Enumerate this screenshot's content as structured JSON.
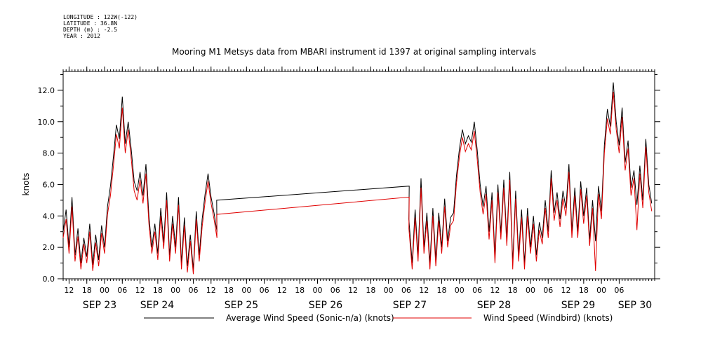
{
  "header": {
    "longitude": "LONGITUDE : 122W(-122)",
    "latitude": "LATITUDE : 36.8N",
    "depth": "DEPTH (m) : -2.5",
    "year": "YEAR : 2012"
  },
  "chart_data": {
    "type": "line",
    "title": "Mooring M1 Metsys data from MBARI instrument id 1397 at original sampling intervals",
    "ylabel": "knots",
    "xlabel": "",
    "ylim": [
      0,
      13.2
    ],
    "xlim_hours": [
      0,
      200
    ],
    "y_ticks": [
      "0.0",
      "2.0",
      "4.0",
      "6.0",
      "8.0",
      "10.0",
      "12.0"
    ],
    "x_hour_ticks": [
      "12",
      "18",
      "00",
      "06",
      "12",
      "18",
      "00",
      "06",
      "12",
      "18",
      "00",
      "06",
      "12",
      "18",
      "00",
      "06",
      "12",
      "18",
      "00",
      "06",
      "12",
      "18",
      "00",
      "06",
      "12",
      "18",
      "00",
      "06",
      "12",
      "18",
      "00",
      "06"
    ],
    "x_day_labels": [
      "SEP 23",
      "SEP 24",
      "SEP 25",
      "SEP 26",
      "SEP 27",
      "SEP 28",
      "SEP 29",
      "SEP 30"
    ],
    "legend_position": "bottom",
    "grid": false,
    "series": [
      {
        "name": "Average Wind Speed (Sonic-n/a) (knots)",
        "color": "#000000",
        "points": [
          [
            0,
            3.0
          ],
          [
            1,
            4.4
          ],
          [
            2,
            2.0
          ],
          [
            3,
            5.2
          ],
          [
            4,
            1.5
          ],
          [
            5,
            3.2
          ],
          [
            6,
            1.0
          ],
          [
            7,
            2.6
          ],
          [
            8,
            1.4
          ],
          [
            9,
            3.5
          ],
          [
            10,
            0.9
          ],
          [
            11,
            2.8
          ],
          [
            12,
            1.2
          ],
          [
            13,
            3.4
          ],
          [
            14,
            2.0
          ],
          [
            15,
            4.6
          ],
          [
            16,
            5.9
          ],
          [
            17,
            7.8
          ],
          [
            18,
            9.8
          ],
          [
            19,
            8.9
          ],
          [
            20,
            11.6
          ],
          [
            21,
            8.6
          ],
          [
            22,
            10.0
          ],
          [
            23,
            8.3
          ],
          [
            24,
            6.2
          ],
          [
            25,
            5.6
          ],
          [
            26,
            6.8
          ],
          [
            27,
            5.3
          ],
          [
            28,
            7.3
          ],
          [
            29,
            4.0
          ],
          [
            30,
            2.0
          ],
          [
            31,
            3.5
          ],
          [
            32,
            1.6
          ],
          [
            33,
            4.5
          ],
          [
            34,
            2.3
          ],
          [
            35,
            5.5
          ],
          [
            36,
            1.5
          ],
          [
            37,
            4.0
          ],
          [
            38,
            2.0
          ],
          [
            39,
            5.2
          ],
          [
            40,
            1.0
          ],
          [
            41,
            3.9
          ],
          [
            42,
            0.8
          ],
          [
            43,
            2.8
          ],
          [
            44,
            0.6
          ],
          [
            45,
            4.3
          ],
          [
            46,
            1.5
          ],
          [
            47,
            3.8
          ],
          [
            48,
            5.4
          ],
          [
            49,
            6.7
          ],
          [
            50,
            5.2
          ],
          [
            51,
            4.2
          ],
          [
            52,
            3.0
          ],
          [
            51.9,
            5.0
          ],
          [
            117,
            5.9
          ],
          [
            116.9,
            3.8
          ],
          [
            118,
            1.0
          ],
          [
            119,
            4.4
          ],
          [
            120,
            1.5
          ],
          [
            121,
            6.4
          ],
          [
            122,
            2.0
          ],
          [
            123,
            4.2
          ],
          [
            124,
            1.0
          ],
          [
            125,
            4.5
          ],
          [
            126,
            1.2
          ],
          [
            127,
            4.2
          ],
          [
            128,
            2.0
          ],
          [
            129,
            5.1
          ],
          [
            130,
            2.4
          ],
          [
            131,
            3.9
          ],
          [
            132,
            4.2
          ],
          [
            133,
            6.6
          ],
          [
            134,
            8.3
          ],
          [
            135,
            9.5
          ],
          [
            136,
            8.6
          ],
          [
            137,
            9.1
          ],
          [
            138,
            8.7
          ],
          [
            139,
            10.0
          ],
          [
            140,
            8.2
          ],
          [
            141,
            6.0
          ],
          [
            142,
            4.6
          ],
          [
            143,
            5.9
          ],
          [
            144,
            3.0
          ],
          [
            145,
            5.5
          ],
          [
            146,
            1.4
          ],
          [
            147,
            6.0
          ],
          [
            148,
            2.9
          ],
          [
            149,
            6.3
          ],
          [
            150,
            2.5
          ],
          [
            151,
            6.8
          ],
          [
            152,
            1.0
          ],
          [
            153,
            5.6
          ],
          [
            154,
            1.5
          ],
          [
            155,
            4.4
          ],
          [
            156,
            1.0
          ],
          [
            157,
            4.5
          ],
          [
            158,
            2.0
          ],
          [
            159,
            4.0
          ],
          [
            160,
            1.5
          ],
          [
            161,
            3.6
          ],
          [
            162,
            2.6
          ],
          [
            163,
            5.0
          ],
          [
            164,
            3.0
          ],
          [
            165,
            6.9
          ],
          [
            166,
            4.2
          ],
          [
            167,
            5.5
          ],
          [
            168,
            3.8
          ],
          [
            169,
            5.6
          ],
          [
            170,
            4.5
          ],
          [
            171,
            7.3
          ],
          [
            172,
            3.0
          ],
          [
            173,
            5.8
          ],
          [
            174,
            3.0
          ],
          [
            175,
            6.2
          ],
          [
            176,
            4.0
          ],
          [
            177,
            5.8
          ],
          [
            178,
            2.5
          ],
          [
            179,
            5.0
          ],
          [
            180,
            2.4
          ],
          [
            181,
            5.9
          ],
          [
            182,
            4.3
          ],
          [
            183,
            8.5
          ],
          [
            184,
            10.8
          ],
          [
            185,
            9.7
          ],
          [
            186,
            12.5
          ],
          [
            187,
            10.0
          ],
          [
            188,
            8.5
          ],
          [
            189,
            10.9
          ],
          [
            190,
            7.4
          ],
          [
            191,
            8.8
          ],
          [
            192,
            5.8
          ],
          [
            193,
            6.9
          ],
          [
            194,
            4.7
          ],
          [
            195,
            7.2
          ],
          [
            196,
            5.0
          ],
          [
            197,
            8.9
          ],
          [
            198,
            6.0
          ],
          [
            199,
            4.8
          ]
        ]
      },
      {
        "name": "Wind Speed (Windbird) (knots)",
        "color": "#e00000",
        "points": [
          [
            0,
            2.6
          ],
          [
            1,
            3.8
          ],
          [
            2,
            1.6
          ],
          [
            3,
            4.6
          ],
          [
            4,
            1.1
          ],
          [
            5,
            2.7
          ],
          [
            6,
            0.6
          ],
          [
            7,
            2.2
          ],
          [
            8,
            1.0
          ],
          [
            9,
            3.0
          ],
          [
            10,
            0.5
          ],
          [
            11,
            2.3
          ],
          [
            12,
            0.8
          ],
          [
            13,
            2.9
          ],
          [
            14,
            1.6
          ],
          [
            15,
            4.1
          ],
          [
            16,
            5.3
          ],
          [
            17,
            7.2
          ],
          [
            18,
            9.2
          ],
          [
            19,
            8.3
          ],
          [
            20,
            10.9
          ],
          [
            21,
            8.0
          ],
          [
            22,
            9.5
          ],
          [
            23,
            7.7
          ],
          [
            24,
            5.6
          ],
          [
            25,
            5.0
          ],
          [
            26,
            6.3
          ],
          [
            27,
            4.8
          ],
          [
            28,
            6.7
          ],
          [
            29,
            3.5
          ],
          [
            30,
            1.6
          ],
          [
            31,
            3.0
          ],
          [
            32,
            1.2
          ],
          [
            33,
            4.0
          ],
          [
            34,
            1.9
          ],
          [
            35,
            5.0
          ],
          [
            36,
            1.1
          ],
          [
            37,
            3.5
          ],
          [
            38,
            1.6
          ],
          [
            39,
            4.7
          ],
          [
            40,
            0.6
          ],
          [
            41,
            3.4
          ],
          [
            42,
            0.4
          ],
          [
            43,
            2.4
          ],
          [
            44,
            0.3
          ],
          [
            45,
            3.8
          ],
          [
            46,
            1.1
          ],
          [
            47,
            3.3
          ],
          [
            48,
            4.9
          ],
          [
            49,
            6.2
          ],
          [
            50,
            4.8
          ],
          [
            51,
            3.8
          ],
          [
            52,
            2.6
          ],
          [
            51.9,
            4.1
          ],
          [
            117,
            5.2
          ],
          [
            116.9,
            3.2
          ],
          [
            118,
            0.6
          ],
          [
            119,
            3.9
          ],
          [
            120,
            1.1
          ],
          [
            121,
            5.8
          ],
          [
            122,
            1.6
          ],
          [
            123,
            3.7
          ],
          [
            124,
            0.6
          ],
          [
            125,
            4.0
          ],
          [
            126,
            0.8
          ],
          [
            127,
            3.7
          ],
          [
            128,
            1.6
          ],
          [
            129,
            4.6
          ],
          [
            130,
            2.0
          ],
          [
            131,
            3.4
          ],
          [
            132,
            3.7
          ],
          [
            133,
            6.1
          ],
          [
            134,
            7.8
          ],
          [
            135,
            9.0
          ],
          [
            136,
            8.1
          ],
          [
            137,
            8.6
          ],
          [
            138,
            8.2
          ],
          [
            139,
            9.4
          ],
          [
            140,
            7.6
          ],
          [
            141,
            5.5
          ],
          [
            142,
            4.1
          ],
          [
            143,
            5.4
          ],
          [
            144,
            2.5
          ],
          [
            145,
            5.0
          ],
          [
            146,
            1.0
          ],
          [
            147,
            5.5
          ],
          [
            148,
            2.5
          ],
          [
            149,
            5.8
          ],
          [
            150,
            2.1
          ],
          [
            151,
            6.3
          ],
          [
            152,
            0.6
          ],
          [
            153,
            5.1
          ],
          [
            154,
            1.1
          ],
          [
            155,
            3.9
          ],
          [
            156,
            0.6
          ],
          [
            157,
            4.0
          ],
          [
            158,
            1.6
          ],
          [
            159,
            3.5
          ],
          [
            160,
            1.1
          ],
          [
            161,
            3.1
          ],
          [
            162,
            2.2
          ],
          [
            163,
            4.5
          ],
          [
            164,
            2.6
          ],
          [
            165,
            6.4
          ],
          [
            166,
            3.7
          ],
          [
            167,
            5.0
          ],
          [
            168,
            3.3
          ],
          [
            169,
            5.1
          ],
          [
            170,
            4.0
          ],
          [
            171,
            6.8
          ],
          [
            172,
            2.6
          ],
          [
            173,
            5.3
          ],
          [
            174,
            2.6
          ],
          [
            175,
            5.7
          ],
          [
            176,
            3.5
          ],
          [
            177,
            5.3
          ],
          [
            178,
            2.1
          ],
          [
            179,
            4.5
          ],
          [
            180,
            0.5
          ],
          [
            181,
            5.4
          ],
          [
            182,
            3.8
          ],
          [
            183,
            8.0
          ],
          [
            184,
            10.2
          ],
          [
            185,
            9.2
          ],
          [
            186,
            11.9
          ],
          [
            187,
            9.5
          ],
          [
            188,
            8.0
          ],
          [
            189,
            10.3
          ],
          [
            190,
            6.9
          ],
          [
            191,
            8.3
          ],
          [
            192,
            5.3
          ],
          [
            193,
            6.4
          ],
          [
            194,
            3.1
          ],
          [
            195,
            6.7
          ],
          [
            196,
            4.5
          ],
          [
            197,
            8.4
          ],
          [
            198,
            5.5
          ],
          [
            199,
            4.3
          ]
        ]
      }
    ]
  }
}
